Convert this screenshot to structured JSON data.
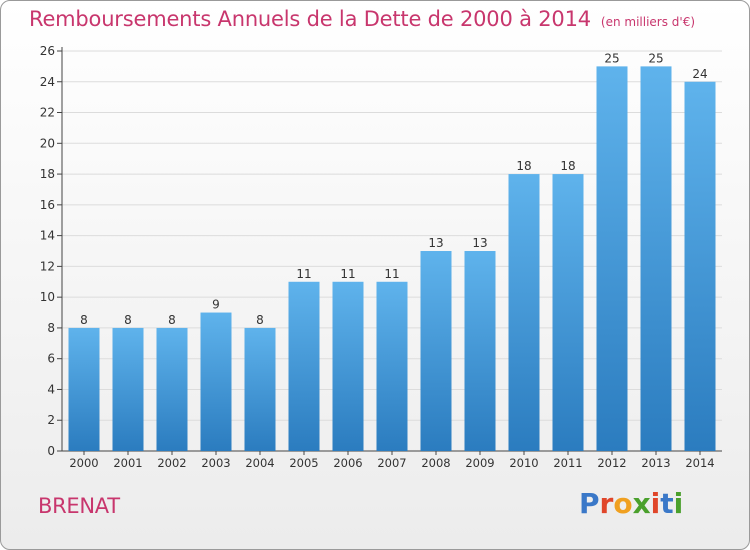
{
  "title": {
    "main": "Remboursements Annuels de la Dette de 2000 à 2014",
    "unit": "(en milliers d'€)"
  },
  "commune": "BRENAT",
  "logo": {
    "text": "Proxiti",
    "letter_colors": [
      "#3a78c8",
      "#e0462a",
      "#f0a020",
      "#4aa02c",
      "#e0462a",
      "#3a78c8",
      "#4aa02c"
    ]
  },
  "colors": {
    "bar_light": "#5fb3ec",
    "bar_dark": "#2b7cbf",
    "title": "#c8366d",
    "grid": "#dcdcdc"
  },
  "chart_data": {
    "type": "bar",
    "categories": [
      "2000",
      "2001",
      "2002",
      "2003",
      "2004",
      "2005",
      "2006",
      "2007",
      "2008",
      "2009",
      "2010",
      "2011",
      "2012",
      "2013",
      "2014"
    ],
    "values": [
      8,
      8,
      8,
      9,
      8,
      11,
      11,
      11,
      13,
      13,
      18,
      18,
      25,
      25,
      24
    ],
    "ylim": [
      0,
      26
    ],
    "yticks": [
      0,
      2,
      4,
      6,
      8,
      10,
      12,
      14,
      16,
      18,
      20,
      22,
      24,
      26
    ],
    "grid": true
  }
}
